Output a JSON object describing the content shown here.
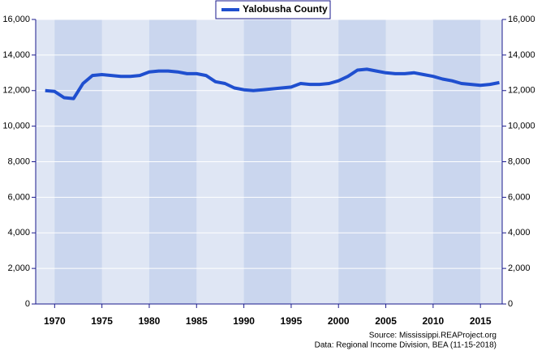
{
  "chart_data": {
    "type": "line",
    "x": [
      1969,
      1970,
      1971,
      1972,
      1973,
      1974,
      1975,
      1976,
      1977,
      1978,
      1979,
      1980,
      1981,
      1982,
      1983,
      1984,
      1985,
      1986,
      1987,
      1988,
      1989,
      1990,
      1991,
      1992,
      1993,
      1994,
      1995,
      1996,
      1997,
      1998,
      1999,
      2000,
      2001,
      2002,
      2003,
      2004,
      2005,
      2006,
      2007,
      2008,
      2009,
      2010,
      2011,
      2012,
      2013,
      2014,
      2015,
      2016,
      2017
    ],
    "series": [
      {
        "name": "Yalobusha County",
        "color": "#1f4fcf",
        "values": [
          12000,
          11950,
          11600,
          11550,
          12400,
          12850,
          12900,
          12850,
          12800,
          12800,
          12850,
          13050,
          13100,
          13100,
          13050,
          12950,
          12950,
          12850,
          12500,
          12400,
          12150,
          12050,
          12000,
          12050,
          12100,
          12150,
          12200,
          12400,
          12350,
          12350,
          12400,
          12550,
          12800,
          13150,
          13200,
          13100,
          13000,
          12950,
          12950,
          13000,
          12900,
          12800,
          12650,
          12550,
          12400,
          12350,
          12300,
          12350,
          12450
        ]
      }
    ],
    "xlim": [
      1968,
      2017.3
    ],
    "xticks": [
      1970,
      1975,
      1980,
      1985,
      1990,
      1995,
      2000,
      2005,
      2010,
      2015
    ],
    "ylim": [
      0,
      16000
    ],
    "yticks": [
      0,
      {
        "value": 2000,
        "label": "2,000"
      },
      {
        "value": 4000,
        "label": "4,000"
      },
      {
        "value": 6000,
        "label": "6,000"
      },
      {
        "value": 8000,
        "label": "8,000"
      },
      {
        "value": 10000,
        "label": "10,000"
      },
      {
        "value": 12000,
        "label": "12,000"
      },
      {
        "value": 14000,
        "label": "14,000"
      },
      {
        "value": 16000,
        "label": "16,000"
      }
    ],
    "grid": true,
    "notes": [
      "Source: Mississippi.REAProject.org",
      "Data: Regional Income Division, BEA (11-15-2018)"
    ]
  }
}
